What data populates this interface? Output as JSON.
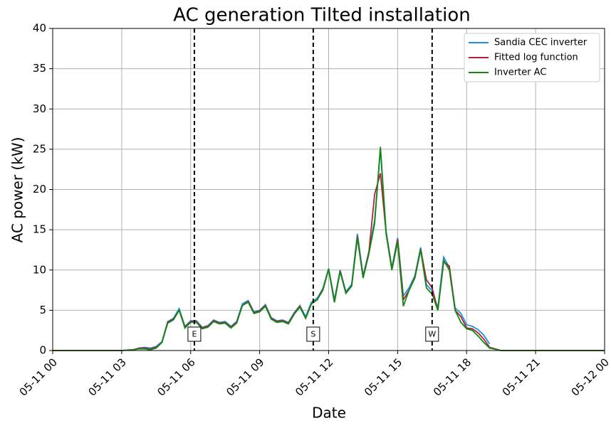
{
  "chart_data": {
    "type": "line",
    "title": "AC generation Tilted installation",
    "xlabel": "Date",
    "ylabel": "AC power (kW)",
    "x": [
      0,
      3,
      3.25,
      3.5,
      3.75,
      4,
      4.25,
      4.5,
      4.75,
      5,
      5.25,
      5.5,
      5.75,
      6,
      6.25,
      6.5,
      6.75,
      7,
      7.25,
      7.5,
      7.75,
      8,
      8.25,
      8.5,
      8.75,
      9,
      9.25,
      9.5,
      9.75,
      10,
      10.25,
      10.5,
      10.75,
      11,
      11.25,
      11.5,
      11.75,
      12,
      12.25,
      12.5,
      12.75,
      13,
      13.25,
      13.5,
      13.75,
      14,
      14.25,
      14.5,
      14.75,
      15,
      15.25,
      15.5,
      15.75,
      16,
      16.25,
      16.5,
      16.75,
      17,
      17.25,
      17.5,
      17.75,
      18,
      18.25,
      18.5,
      18.75,
      19,
      19.5,
      24
    ],
    "series": [
      {
        "name": "Sandia CEC inverter",
        "color": "#1f8ee6",
        "values": [
          null,
          null,
          null,
          null,
          0.3,
          0.4,
          0.3,
          0.5,
          1.1,
          3.6,
          4.0,
          5.2,
          3.0,
          3.7,
          3.7,
          2.9,
          3.1,
          3.8,
          3.5,
          3.6,
          3.0,
          3.6,
          5.8,
          6.2,
          4.8,
          5.0,
          5.7,
          4.1,
          3.7,
          3.8,
          3.5,
          4.7,
          5.6,
          4.2,
          6.0,
          6.5,
          7.7,
          10.2,
          6.3,
          10.0,
          7.3,
          8.2,
          14.5,
          9.3,
          12.3,
          16.2,
          25.0,
          14.8,
          10.3,
          14.0,
          6.8,
          7.8,
          9.3,
          12.8,
          8.2,
          7.4,
          5.3,
          11.6,
          10.3,
          5.3,
          4.6,
          3.2,
          3.0,
          2.6,
          1.9,
          0.8,
          null,
          null
        ]
      },
      {
        "name": "Fitted log function",
        "color": "#b22234",
        "values": [
          0,
          0,
          0.05,
          0.1,
          0.3,
          0.3,
          0.2,
          0.4,
          1.0,
          3.5,
          3.9,
          5.0,
          2.9,
          3.6,
          3.6,
          2.8,
          3.0,
          3.7,
          3.4,
          3.5,
          2.9,
          3.5,
          5.6,
          6.1,
          4.7,
          4.9,
          5.6,
          4.0,
          3.6,
          3.7,
          3.4,
          4.6,
          5.5,
          4.0,
          5.8,
          6.3,
          7.6,
          10.1,
          6.0,
          9.9,
          7.2,
          8.0,
          14.2,
          9.1,
          12.2,
          19.4,
          22.0,
          14.6,
          10.1,
          13.8,
          6.3,
          7.5,
          9.1,
          12.6,
          8.8,
          7.8,
          5.0,
          11.0,
          10.5,
          5.0,
          4.2,
          2.8,
          2.7,
          2.2,
          1.4,
          0.4,
          0,
          0
        ]
      },
      {
        "name": "Inverter AC",
        "color": "#118811",
        "values": [
          0,
          0,
          0.05,
          0.1,
          0.2,
          0.2,
          0.1,
          0.3,
          1.0,
          3.4,
          3.8,
          5.0,
          2.8,
          3.5,
          3.5,
          2.7,
          2.9,
          3.6,
          3.3,
          3.4,
          2.8,
          3.4,
          5.6,
          6.0,
          4.6,
          4.8,
          5.5,
          3.9,
          3.5,
          3.6,
          3.3,
          4.5,
          5.4,
          4.0,
          5.8,
          6.3,
          7.5,
          10.1,
          6.0,
          9.8,
          7.1,
          8.0,
          14.0,
          9.0,
          12.0,
          15.8,
          25.3,
          14.5,
          10.0,
          13.5,
          5.5,
          7.5,
          9.0,
          12.5,
          7.8,
          7.0,
          5.0,
          11.2,
          10.0,
          5.0,
          3.5,
          2.7,
          2.5,
          1.8,
          1.0,
          0.3,
          0,
          0
        ]
      }
    ],
    "vlines": [
      {
        "x": 6.16,
        "label": "E"
      },
      {
        "x": 11.33,
        "label": "S"
      },
      {
        "x": 16.5,
        "label": "W"
      }
    ],
    "xlim": [
      0,
      24
    ],
    "xticks": [
      {
        "value": 0,
        "label": "05-11 00"
      },
      {
        "value": 3,
        "label": "05-11 03"
      },
      {
        "value": 6,
        "label": "05-11 06"
      },
      {
        "value": 9,
        "label": "05-11 09"
      },
      {
        "value": 12,
        "label": "05-11 12"
      },
      {
        "value": 15,
        "label": "05-11 15"
      },
      {
        "value": 18,
        "label": "05-11 18"
      },
      {
        "value": 21,
        "label": "05-11 21"
      },
      {
        "value": 24,
        "label": "05-12 00"
      }
    ],
    "ylim": [
      0,
      40
    ],
    "yticks": [
      0,
      5,
      10,
      15,
      20,
      25,
      30,
      35,
      40
    ],
    "grid": true,
    "legend": "upper right"
  }
}
